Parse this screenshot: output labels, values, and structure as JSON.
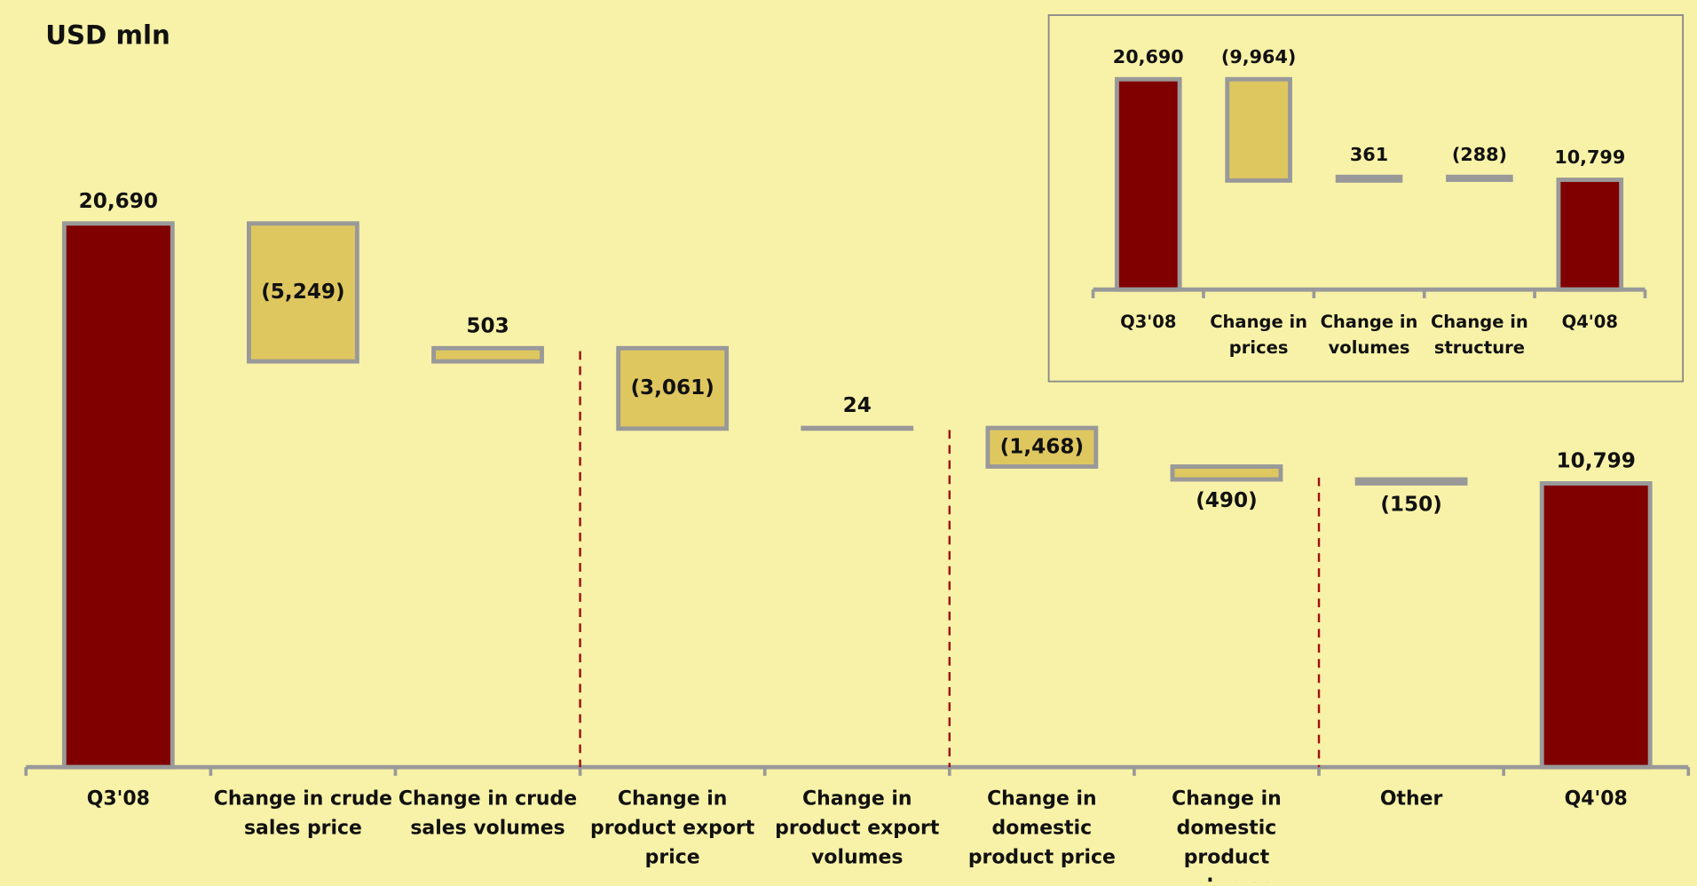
{
  "chart_data": [
    {
      "type": "waterfall",
      "title": "USD mln",
      "categories": [
        "Q3'08",
        "Change in crude sales price",
        "Change in crude sales volumes",
        "Change in product export price",
        "Change in product export volumes",
        "Change in domestic product price",
        "Change in domestic product volumes",
        "Other",
        "Q4'08"
      ],
      "values": [
        20690,
        -5249,
        503,
        -3061,
        24,
        -1468,
        -490,
        -150,
        10799
      ],
      "value_labels": [
        "20,690",
        "(5,249)",
        "503",
        "(3,061)",
        "24",
        "(1,468)",
        "(490)",
        "(150)",
        "10,799"
      ],
      "total_color": "#800000",
      "change_color": "#dfc760",
      "edge_color": "#999999",
      "ylim": [
        0,
        25000
      ]
    },
    {
      "type": "waterfall",
      "categories": [
        "Q3'08",
        "Change in prices",
        "Change in volumes",
        "Change in structure",
        "Q4'08"
      ],
      "values": [
        20690,
        -9964,
        361,
        -288,
        10799
      ],
      "value_labels": [
        "20,690",
        "(9,964)",
        "361",
        "(288)",
        "10,799"
      ],
      "total_color": "#800000",
      "change_color": "#dfc760",
      "edge_color": "#999999",
      "ylim": [
        0,
        22000
      ]
    }
  ]
}
